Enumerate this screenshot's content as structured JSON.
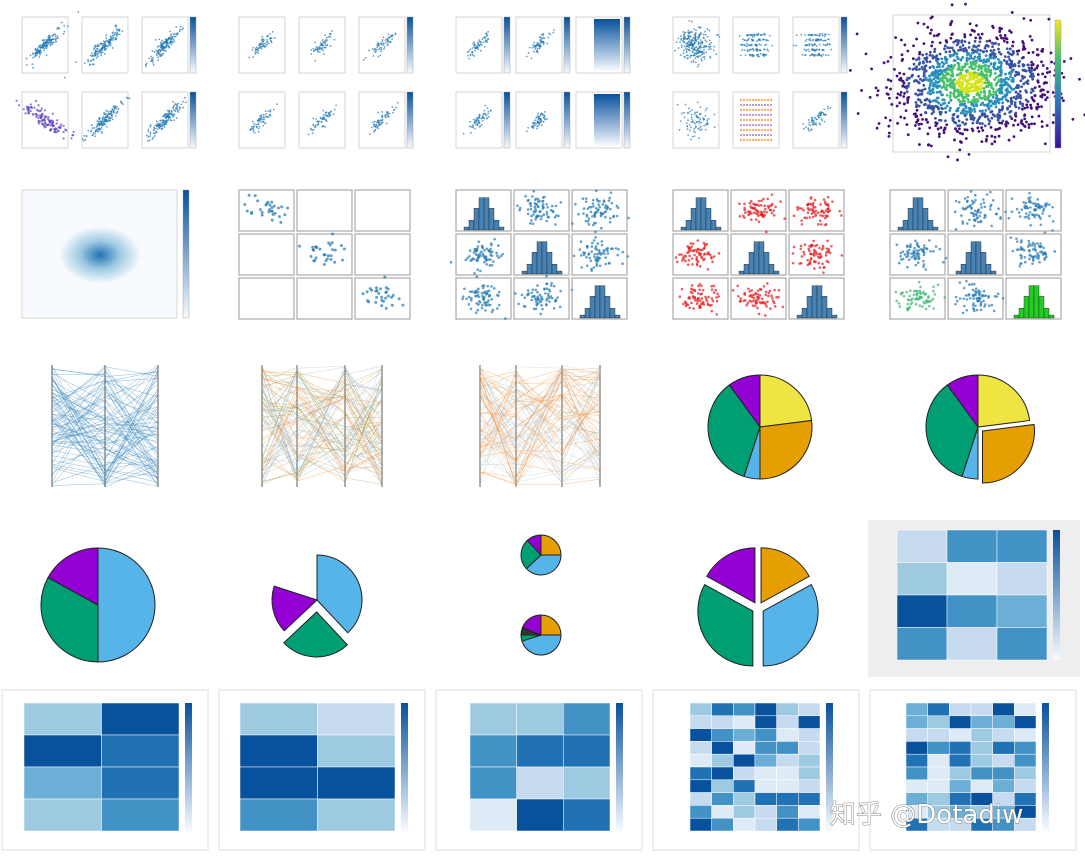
{
  "watermark": "知乎 @Dotadiw"
}
